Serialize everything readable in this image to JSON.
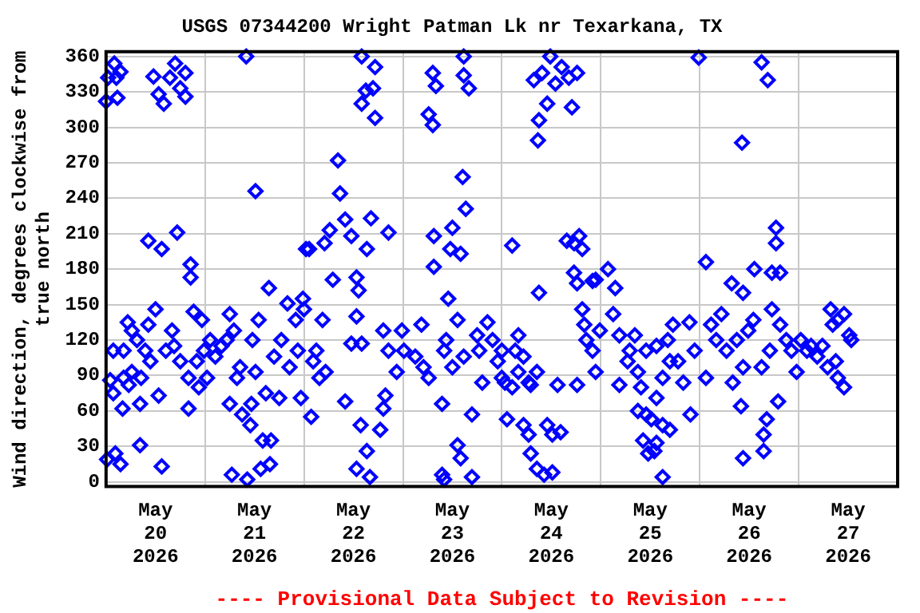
{
  "chart_data": {
    "type": "scatter",
    "title": "USGS 07344200 Wright Patman Lk nr Texarkana, TX",
    "ylabel": "Wind direction, degrees clockwise from true north",
    "annotations": [
      "---- Provisional Data Subject to Revision ----"
    ],
    "marker": "diamond",
    "grid": true,
    "legend": false,
    "xlim": [
      "2026-05-20T00:00",
      "2026-05-28T00:00"
    ],
    "xticks": [
      {
        "value": "2026-05-20T00:00",
        "label": null
      },
      {
        "value": "2026-05-20T12:00",
        "label": "May\n20\n2026"
      },
      {
        "value": "2026-05-21T00:00",
        "label": null
      },
      {
        "value": "2026-05-21T12:00",
        "label": "May\n21\n2026"
      },
      {
        "value": "2026-05-22T00:00",
        "label": null
      },
      {
        "value": "2026-05-22T12:00",
        "label": "May\n22\n2026"
      },
      {
        "value": "2026-05-23T00:00",
        "label": null
      },
      {
        "value": "2026-05-23T12:00",
        "label": "May\n23\n2026"
      },
      {
        "value": "2026-05-24T00:00",
        "label": null
      },
      {
        "value": "2026-05-24T12:00",
        "label": "May\n24\n2026"
      },
      {
        "value": "2026-05-25T00:00",
        "label": null
      },
      {
        "value": "2026-05-25T12:00",
        "label": "May\n25\n2026"
      },
      {
        "value": "2026-05-26T00:00",
        "label": null
      },
      {
        "value": "2026-05-26T12:00",
        "label": "May\n26\n2026"
      },
      {
        "value": "2026-05-27T00:00",
        "label": null
      },
      {
        "value": "2026-05-27T12:00",
        "label": "May\n27\n2026"
      },
      {
        "value": "2026-05-28T00:00",
        "label": null
      }
    ],
    "ylim": [
      -4,
      364
    ],
    "yticks": [
      0,
      30,
      60,
      90,
      120,
      150,
      180,
      210,
      240,
      270,
      300,
      330,
      360
    ],
    "series": [
      {
        "color": "#0000ff",
        "x": [
          "2026-05-20T00:00",
          "2026-05-20T00:30",
          "2026-05-20T02:00",
          "2026-05-20T02:30",
          "2026-05-20T03:30",
          "2026-05-20T02:45",
          "2026-05-20T00:15",
          "2026-05-20T02:15",
          "2026-05-20T03:30",
          "2026-05-20T01:00",
          "2026-05-20T01:45",
          "2026-05-20T01:45",
          "2026-05-20T04:00",
          "2026-05-20T04:15",
          "2026-05-20T04:15",
          "2026-05-20T05:30",
          "2026-05-20T06:15",
          "2026-05-20T05:15",
          "2026-05-20T06:15",
          "2026-05-20T07:30",
          "2026-05-20T08:15",
          "2026-05-20T08:15",
          "2026-05-20T08:30",
          "2026-05-20T09:30",
          "2026-05-20T10:15",
          "2026-05-20T10:15",
          "2026-05-20T10:45",
          "2026-05-20T11:30",
          "2026-05-20T12:00",
          "2026-05-20T12:45",
          "2026-05-20T13:30",
          "2026-05-20T13:30",
          "2026-05-20T12:45",
          "2026-05-20T14:00",
          "2026-05-20T14:30",
          "2026-05-20T15:30",
          "2026-05-20T16:00",
          "2026-05-20T16:30",
          "2026-05-20T16:45",
          "2026-05-20T17:15",
          "2026-05-20T18:00",
          "2026-05-20T18:00",
          "2026-05-20T19:15",
          "2026-05-20T19:15",
          "2026-05-20T20:00",
          "2026-05-20T20:30",
          "2026-05-20T20:30",
          "2026-05-20T20:00",
          "2026-05-20T21:15",
          "2026-05-20T22:00",
          "2026-05-20T22:30",
          "2026-05-20T23:15",
          "2026-05-20T23:45",
          "2026-05-21T00:30",
          "2026-05-21T01:15",
          "2026-05-21T02:30",
          "2026-05-21T04:00",
          "2026-05-21T05:15",
          "2026-05-21T06:00",
          "2026-05-21T06:00",
          "2026-05-21T06:30",
          "2026-05-21T07:00",
          "2026-05-21T07:45",
          "2026-05-21T08:30",
          "2026-05-21T09:00",
          "2026-05-21T10:00",
          "2026-05-21T10:15",
          "2026-05-21T11:00",
          "2026-05-21T11:15",
          "2026-05-21T11:30",
          "2026-05-21T12:15",
          "2026-05-21T12:15",
          "2026-05-21T13:00",
          "2026-05-21T13:30",
          "2026-05-21T14:00",
          "2026-05-21T14:45",
          "2026-05-21T15:30",
          "2026-05-21T15:45",
          "2026-05-21T16:00",
          "2026-05-21T16:45",
          "2026-05-21T18:00",
          "2026-05-21T18:30",
          "2026-05-21T20:00",
          "2026-05-21T20:30",
          "2026-05-21T22:00",
          "2026-05-21T22:30",
          "2026-05-21T23:15",
          "2026-05-21T23:45",
          "2026-05-22T00:00",
          "2026-05-22T00:30",
          "2026-05-22T01:15",
          "2026-05-22T01:45",
          "2026-05-22T02:15",
          "2026-05-22T03:00",
          "2026-05-22T03:45",
          "2026-05-22T04:30",
          "2026-05-22T05:00",
          "2026-05-22T05:15",
          "2026-05-22T06:15",
          "2026-05-22T07:00",
          "2026-05-22T08:15",
          "2026-05-22T08:45",
          "2026-05-22T10:00",
          "2026-05-22T10:00",
          "2026-05-22T11:30",
          "2026-05-22T11:30",
          "2026-05-22T12:45",
          "2026-05-22T12:45",
          "2026-05-22T12:45",
          "2026-05-22T13:15",
          "2026-05-22T13:45",
          "2026-05-22T14:00",
          "2026-05-22T14:00",
          "2026-05-22T14:00",
          "2026-05-22T15:00",
          "2026-05-22T15:15",
          "2026-05-22T15:15",
          "2026-05-22T16:00",
          "2026-05-22T16:15",
          "2026-05-22T16:45",
          "2026-05-22T17:15",
          "2026-05-22T17:15",
          "2026-05-22T18:30",
          "2026-05-22T19:15",
          "2026-05-22T19:15",
          "2026-05-22T19:45",
          "2026-05-22T20:30",
          "2026-05-22T20:30",
          "2026-05-22T22:30",
          "2026-05-22T23:45",
          "2026-05-23T00:15",
          "2026-05-23T03:00",
          "2026-05-23T04:30",
          "2026-05-23T05:00",
          "2026-05-23T06:15",
          "2026-05-23T06:15",
          "2026-05-23T07:15",
          "2026-05-23T07:15",
          "2026-05-23T07:30",
          "2026-05-23T07:30",
          "2026-05-23T08:00",
          "2026-05-23T09:30",
          "2026-05-23T09:30",
          "2026-05-23T10:00",
          "2026-05-23T10:00",
          "2026-05-23T10:30",
          "2026-05-23T11:00",
          "2026-05-23T11:30",
          "2026-05-23T12:00",
          "2026-05-23T12:00",
          "2026-05-23T13:15",
          "2026-05-23T13:15",
          "2026-05-23T14:00",
          "2026-05-23T14:00",
          "2026-05-23T14:30",
          "2026-05-23T14:45",
          "2026-05-23T14:45",
          "2026-05-23T14:45",
          "2026-05-23T15:15",
          "2026-05-23T16:00",
          "2026-05-23T16:45",
          "2026-05-23T16:45",
          "2026-05-23T18:00",
          "2026-05-23T18:30",
          "2026-05-23T19:15",
          "2026-05-23T20:30",
          "2026-05-23T21:45",
          "2026-05-23T23:00",
          "2026-05-24T00:00",
          "2026-05-24T00:00",
          "2026-05-24T00:45",
          "2026-05-24T01:15",
          "2026-05-24T02:30",
          "2026-05-24T02:30",
          "2026-05-24T03:15",
          "2026-05-24T04:00",
          "2026-05-24T04:00",
          "2026-05-24T05:15",
          "2026-05-24T05:15",
          "2026-05-24T06:30",
          "2026-05-24T06:30",
          "2026-05-24T07:00",
          "2026-05-24T07:00",
          "2026-05-24T07:45",
          "2026-05-24T08:30",
          "2026-05-24T08:30",
          "2026-05-24T08:45",
          "2026-05-24T09:00",
          "2026-05-24T09:00",
          "2026-05-24T09:45",
          "2026-05-24T10:15",
          "2026-05-24T11:00",
          "2026-05-24T11:00",
          "2026-05-24T11:45",
          "2026-05-24T12:15",
          "2026-05-24T12:15",
          "2026-05-24T13:00",
          "2026-05-24T13:30",
          "2026-05-24T14:15",
          "2026-05-24T14:30",
          "2026-05-24T15:45",
          "2026-05-24T16:15",
          "2026-05-24T17:00",
          "2026-05-24T17:30",
          "2026-05-24T17:30",
          "2026-05-24T18:15",
          "2026-05-24T18:15",
          "2026-05-24T18:15",
          "2026-05-24T18:45",
          "2026-05-24T19:30",
          "2026-05-24T19:30",
          "2026-05-24T20:00",
          "2026-05-24T20:30",
          "2026-05-24T22:00",
          "2026-05-24T22:00",
          "2026-05-24T22:45",
          "2026-05-24T22:45",
          "2026-05-24T23:45",
          "2026-05-25T01:45",
          "2026-05-25T03:00",
          "2026-05-25T03:30",
          "2026-05-25T04:30",
          "2026-05-25T04:30",
          "2026-05-25T06:30",
          "2026-05-25T07:00",
          "2026-05-25T08:15",
          "2026-05-25T09:00",
          "2026-05-25T09:00",
          "2026-05-25T09:45",
          "2026-05-25T10:15",
          "2026-05-25T11:00",
          "2026-05-25T11:00",
          "2026-05-25T11:30",
          "2026-05-25T12:15",
          "2026-05-25T13:00",
          "2026-05-25T13:30",
          "2026-05-25T13:30",
          "2026-05-25T13:30",
          "2026-05-25T15:00",
          "2026-05-25T15:00",
          "2026-05-25T15:00",
          "2026-05-25T16:15",
          "2026-05-25T16:45",
          "2026-05-25T16:45",
          "2026-05-25T17:30",
          "2026-05-25T18:45",
          "2026-05-25T20:00",
          "2026-05-25T21:30",
          "2026-05-25T21:45",
          "2026-05-25T22:45",
          "2026-05-25T23:45",
          "2026-05-26T01:30",
          "2026-05-26T01:30",
          "2026-05-26T02:45",
          "2026-05-26T04:00",
          "2026-05-26T05:15",
          "2026-05-26T06:30",
          "2026-05-26T07:45",
          "2026-05-26T08:00",
          "2026-05-26T09:00",
          "2026-05-26T10:00",
          "2026-05-26T10:15",
          "2026-05-26T10:30",
          "2026-05-26T10:30",
          "2026-05-26T10:30",
          "2026-05-26T11:45",
          "2026-05-26T13:00",
          "2026-05-26T13:15",
          "2026-05-26T15:00",
          "2026-05-26T15:00",
          "2026-05-26T15:30",
          "2026-05-26T15:30",
          "2026-05-26T16:15",
          "2026-05-26T16:30",
          "2026-05-26T17:00",
          "2026-05-26T17:30",
          "2026-05-26T17:30",
          "2026-05-26T18:30",
          "2026-05-26T18:30",
          "2026-05-26T19:00",
          "2026-05-26T19:30",
          "2026-05-26T19:30",
          "2026-05-26T21:00",
          "2026-05-26T22:15",
          "2026-05-26T23:30",
          "2026-05-27T00:30",
          "2026-05-27T02:00",
          "2026-05-27T03:00",
          "2026-05-27T04:30",
          "2026-05-27T05:45",
          "2026-05-27T07:00",
          "2026-05-27T07:45",
          "2026-05-27T08:15",
          "2026-05-27T09:00",
          "2026-05-27T09:30",
          "2026-05-27T09:30",
          "2026-05-27T11:00",
          "2026-05-27T11:00",
          "2026-05-27T12:15",
          "2026-05-27T12:45"
        ],
        "values": [
          322,
          342,
          354,
          342,
          347,
          325,
          19,
          24,
          15,
          86,
          75,
          111,
          62,
          111,
          88,
          82,
          93,
          135,
          128,
          120,
          31,
          66,
          88,
          111,
          204,
          133,
          102,
          343,
          146,
          73,
          13,
          197,
          328,
          320,
          111,
          342,
          128,
          115,
          354,
          211,
          333,
          102,
          326,
          346,
          88,
          184,
          173,
          62,
          144,
          102,
          80,
          137,
          111,
          88,
          120,
          106,
          115,
          120,
          142,
          66,
          6,
          128,
          88,
          97,
          57,
          360,
          2,
          48,
          66,
          120,
          246,
          93,
          137,
          11,
          35,
          75,
          164,
          15,
          35,
          106,
          71,
          120,
          151,
          97,
          137,
          111,
          71,
          155,
          146,
          197,
          197,
          55,
          102,
          111,
          88,
          137,
          202,
          93,
          213,
          171,
          272,
          244,
          222,
          68,
          208,
          117,
          173,
          140,
          11,
          162,
          48,
          360,
          320,
          117,
          331,
          197,
          26,
          4,
          223,
          333,
          351,
          308,
          44,
          62,
          128,
          73,
          111,
          211,
          93,
          128,
          111,
          106,
          133,
          97,
          88,
          311,
          346,
          302,
          208,
          182,
          335,
          6,
          66,
          2,
          111,
          120,
          155,
          197,
          215,
          97,
          31,
          137,
          20,
          193,
          258,
          360,
          344,
          106,
          231,
          333,
          4,
          57,
          124,
          111,
          84,
          135,
          120,
          102,
          88,
          111,
          84,
          53,
          80,
          200,
          111,
          93,
          124,
          48,
          106,
          40,
          84,
          24,
          82,
          340,
          11,
          93,
          289,
          306,
          160,
          346,
          6,
          320,
          48,
          360,
          8,
          40,
          337,
          82,
          42,
          351,
          204,
          342,
          317,
          202,
          177,
          346,
          82,
          168,
          208,
          197,
          146,
          133,
          120,
          111,
          170,
          171,
          93,
          128,
          180,
          142,
          164,
          124,
          82,
          102,
          111,
          124,
          93,
          60,
          80,
          35,
          57,
          111,
          24,
          53,
          26,
          33,
          71,
          115,
          48,
          88,
          4,
          120,
          44,
          102,
          133,
          102,
          84,
          135,
          57,
          111,
          359,
          186,
          88,
          133,
          120,
          142,
          111,
          168,
          84,
          120,
          64,
          287,
          20,
          160,
          97,
          128,
          137,
          180,
          355,
          97,
          40,
          26,
          53,
          340,
          111,
          177,
          146,
          215,
          202,
          68,
          177,
          133,
          120,
          111,
          93,
          120,
          111,
          115,
          106,
          115,
          97,
          146,
          133,
          102,
          137,
          88,
          142,
          80,
          124,
          120
        ]
      }
    ]
  }
}
